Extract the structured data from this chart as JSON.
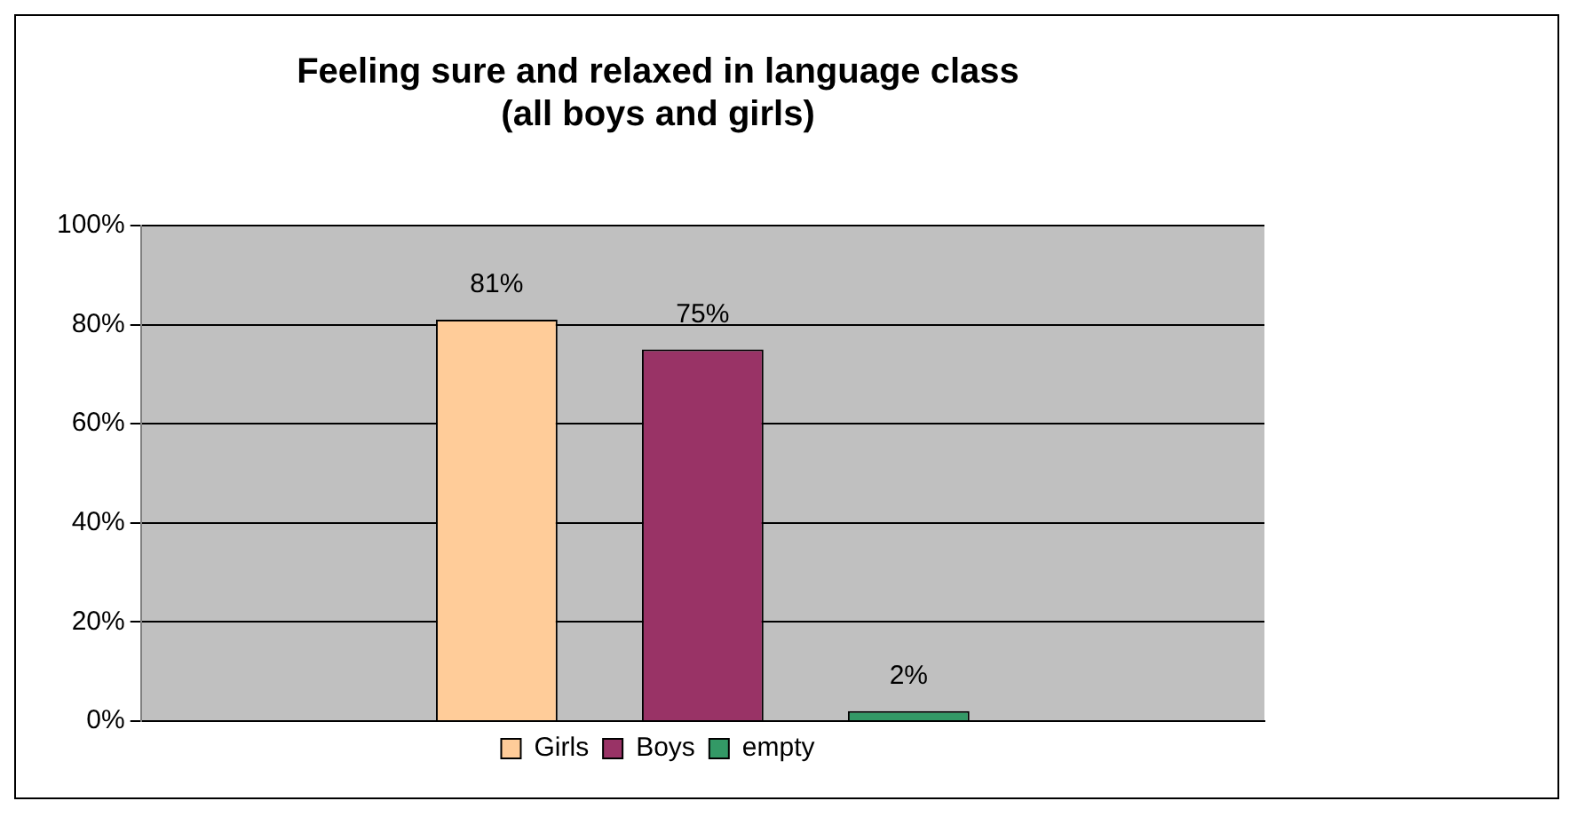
{
  "chart_data": {
    "type": "bar",
    "title": [
      "Feeling sure and relaxed in language class",
      "(all boys and girls)"
    ],
    "categories": [
      null
    ],
    "series": [
      {
        "name": "Girls",
        "color": "#ffcc99",
        "values": [
          81
        ],
        "value_labels": [
          "81%"
        ]
      },
      {
        "name": "Boys",
        "color": "#993366",
        "values": [
          75
        ],
        "value_labels": [
          "75%"
        ]
      },
      {
        "name": "empty",
        "color": "#339966",
        "values": [
          2
        ],
        "value_labels": [
          "2%"
        ]
      }
    ],
    "ylim": [
      0,
      100
    ],
    "yticks": [
      {
        "value": 0,
        "label": "0%"
      },
      {
        "value": 20,
        "label": "20%"
      },
      {
        "value": 40,
        "label": "40%"
      },
      {
        "value": 60,
        "label": "60%"
      },
      {
        "value": 80,
        "label": "80%"
      },
      {
        "value": 100,
        "label": "100%"
      }
    ],
    "grid": "y",
    "legend": "bottom",
    "tick_labels": "y"
  }
}
